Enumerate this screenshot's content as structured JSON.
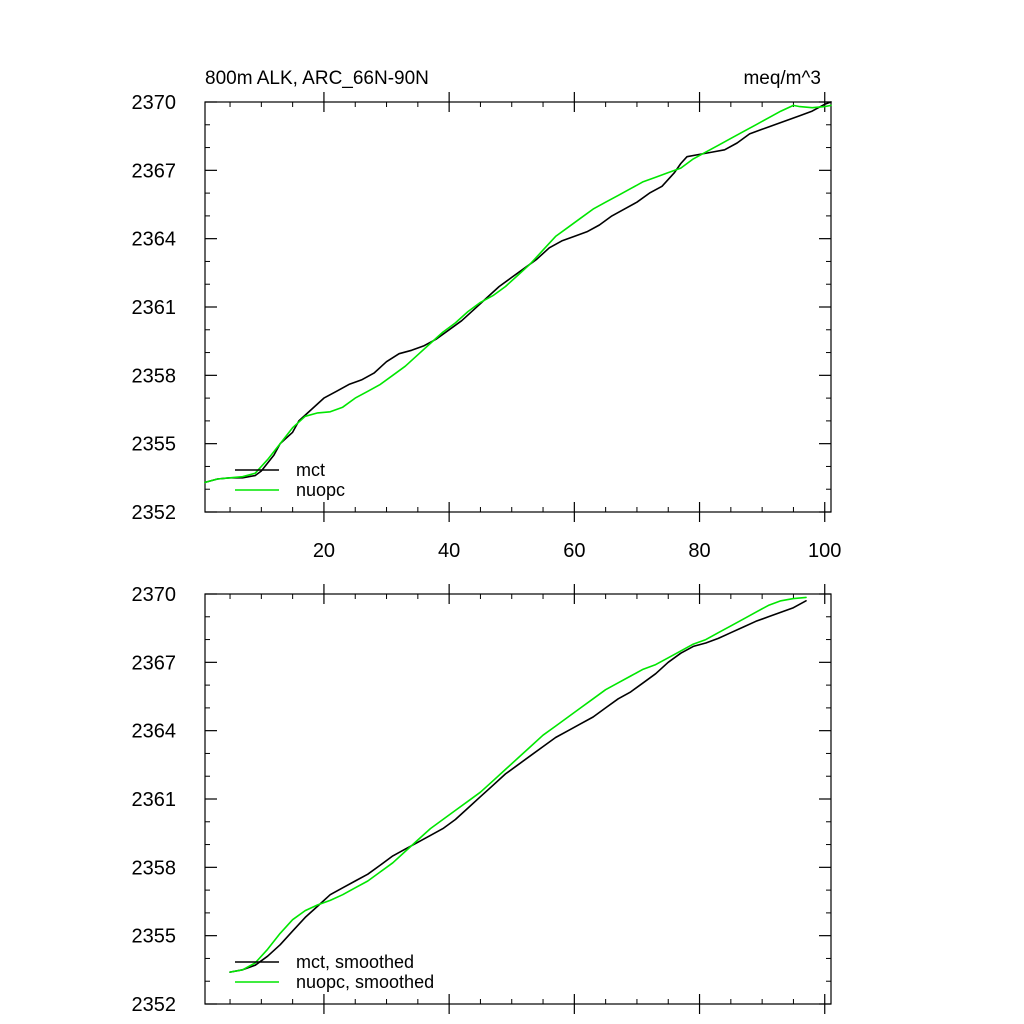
{
  "chart_data": [
    {
      "type": "line",
      "title_left": "800m ALK, ARC_66N-90N",
      "title_right": "meq/m^3",
      "xlim": [
        1,
        101
      ],
      "ylim": [
        2352,
        2370
      ],
      "xticks": [
        20,
        40,
        60,
        80,
        100
      ],
      "yticks": [
        2352,
        2355,
        2358,
        2361,
        2364,
        2367,
        2370
      ],
      "show_xtick_labels": true,
      "legend_position": "bottom-left",
      "series": [
        {
          "name": "mct",
          "color": "#000000",
          "x": [
            1,
            3,
            5,
            7,
            9,
            10,
            12,
            13,
            15,
            16,
            18,
            20,
            22,
            24,
            26,
            28,
            30,
            32,
            34,
            36,
            38,
            40,
            42,
            44,
            46,
            48,
            50,
            52,
            54,
            56,
            58,
            60,
            62,
            64,
            66,
            68,
            70,
            72,
            74,
            76,
            77,
            78,
            80,
            82,
            84,
            86,
            88,
            90,
            92,
            94,
            96,
            98,
            100,
            101
          ],
          "y": [
            2353.3,
            2353.45,
            2353.5,
            2353.5,
            2353.6,
            2353.8,
            2354.5,
            2355.0,
            2355.5,
            2356.0,
            2356.5,
            2357.0,
            2357.3,
            2357.6,
            2357.8,
            2358.1,
            2358.6,
            2358.95,
            2359.1,
            2359.3,
            2359.6,
            2360.0,
            2360.4,
            2360.9,
            2361.4,
            2361.9,
            2362.3,
            2362.7,
            2363.1,
            2363.6,
            2363.9,
            2364.1,
            2364.3,
            2364.6,
            2365.0,
            2365.3,
            2365.6,
            2366.0,
            2366.3,
            2366.9,
            2367.3,
            2367.6,
            2367.7,
            2367.8,
            2367.9,
            2368.2,
            2368.6,
            2368.8,
            2369.0,
            2369.2,
            2369.4,
            2369.6,
            2369.9,
            2370.0
          ]
        },
        {
          "name": "nuopc",
          "color": "#00e600",
          "x": [
            1,
            3,
            5,
            7,
            9,
            11,
            13,
            15,
            17,
            19,
            21,
            23,
            25,
            27,
            29,
            31,
            33,
            35,
            37,
            39,
            41,
            43,
            45,
            47,
            49,
            51,
            53,
            55,
            57,
            59,
            61,
            63,
            65,
            67,
            69,
            71,
            73,
            75,
            77,
            79,
            81,
            83,
            85,
            87,
            89,
            91,
            93,
            95,
            96,
            98,
            100,
            101
          ],
          "y": [
            2353.3,
            2353.45,
            2353.5,
            2353.55,
            2353.7,
            2354.3,
            2355.0,
            2355.7,
            2356.2,
            2356.35,
            2356.4,
            2356.6,
            2357.0,
            2357.3,
            2357.6,
            2358.0,
            2358.4,
            2358.9,
            2359.4,
            2359.9,
            2360.3,
            2360.8,
            2361.2,
            2361.5,
            2361.9,
            2362.4,
            2362.9,
            2363.5,
            2364.1,
            2364.5,
            2364.9,
            2365.3,
            2365.6,
            2365.9,
            2366.2,
            2366.5,
            2366.7,
            2366.9,
            2367.1,
            2367.5,
            2367.8,
            2368.1,
            2368.4,
            2368.7,
            2369.0,
            2369.3,
            2369.6,
            2369.85,
            2369.8,
            2369.75,
            2369.8,
            2369.85
          ]
        }
      ]
    },
    {
      "type": "line",
      "xlim": [
        1,
        101
      ],
      "ylim": [
        2352,
        2370
      ],
      "xticks": [
        20,
        40,
        60,
        80,
        100
      ],
      "yticks": [
        2352,
        2355,
        2358,
        2361,
        2364,
        2367,
        2370
      ],
      "show_xtick_labels": false,
      "legend_position": "bottom-left",
      "series": [
        {
          "name": "mct, smoothed",
          "color": "#000000",
          "x": [
            5,
            7,
            9,
            11,
            13,
            15,
            17,
            19,
            21,
            23,
            25,
            27,
            29,
            31,
            33,
            35,
            37,
            39,
            41,
            43,
            45,
            47,
            49,
            51,
            53,
            55,
            57,
            59,
            61,
            63,
            65,
            67,
            69,
            71,
            73,
            75,
            77,
            79,
            81,
            83,
            85,
            87,
            89,
            91,
            93,
            95,
            97
          ],
          "y": [
            2353.4,
            2353.5,
            2353.7,
            2354.1,
            2354.6,
            2355.2,
            2355.8,
            2356.3,
            2356.8,
            2357.1,
            2357.4,
            2357.7,
            2358.1,
            2358.5,
            2358.8,
            2359.1,
            2359.4,
            2359.7,
            2360.1,
            2360.6,
            2361.1,
            2361.6,
            2362.1,
            2362.5,
            2362.9,
            2363.3,
            2363.7,
            2364.0,
            2364.3,
            2364.6,
            2365.0,
            2365.4,
            2365.7,
            2366.1,
            2366.5,
            2367.0,
            2367.4,
            2367.7,
            2367.85,
            2368.05,
            2368.3,
            2368.55,
            2368.8,
            2369.0,
            2369.2,
            2369.4,
            2369.7
          ]
        },
        {
          "name": "nuopc, smoothed",
          "color": "#00e600",
          "x": [
            5,
            7,
            9,
            11,
            13,
            15,
            17,
            19,
            21,
            23,
            25,
            27,
            29,
            31,
            33,
            35,
            37,
            39,
            41,
            43,
            45,
            47,
            49,
            51,
            53,
            55,
            57,
            59,
            61,
            63,
            65,
            67,
            69,
            71,
            73,
            75,
            77,
            79,
            81,
            83,
            85,
            87,
            89,
            91,
            93,
            95,
            97
          ],
          "y": [
            2353.4,
            2353.5,
            2353.8,
            2354.4,
            2355.1,
            2355.7,
            2356.1,
            2356.35,
            2356.55,
            2356.8,
            2357.1,
            2357.4,
            2357.8,
            2358.2,
            2358.7,
            2359.2,
            2359.7,
            2360.1,
            2360.5,
            2360.9,
            2361.3,
            2361.8,
            2362.3,
            2362.8,
            2363.3,
            2363.8,
            2364.2,
            2364.6,
            2365.0,
            2365.4,
            2365.8,
            2366.1,
            2366.4,
            2366.7,
            2366.9,
            2367.2,
            2367.5,
            2367.8,
            2368.0,
            2368.3,
            2368.6,
            2368.9,
            2369.2,
            2369.5,
            2369.7,
            2369.8,
            2369.85
          ]
        }
      ]
    }
  ]
}
